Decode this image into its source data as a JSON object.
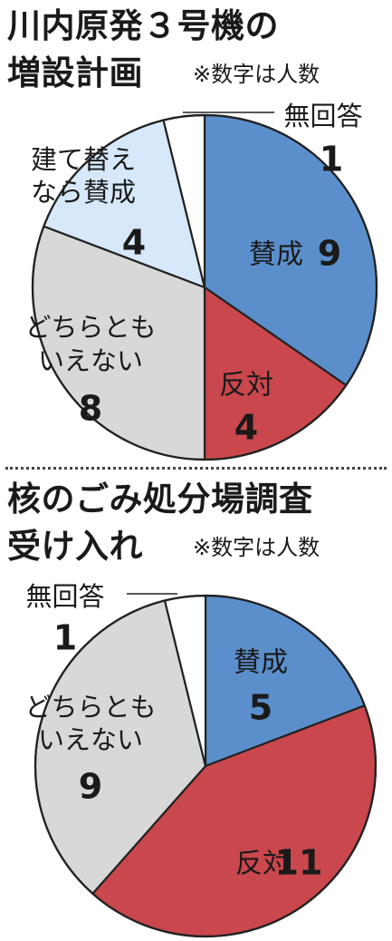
{
  "chart_data": [
    {
      "type": "pie",
      "title": "川内原発３号機の増設計画",
      "title_lines": [
        "川内原発３号機の",
        "増設計画"
      ],
      "note": "※数字は人数",
      "categories": [
        "賛成",
        "反対",
        "どちらともいえない",
        "建て替えなら賛成",
        "無回答"
      ],
      "label_lines": [
        [
          "賛成"
        ],
        [
          "反対"
        ],
        [
          "どちらとも",
          "いえない"
        ],
        [
          "建て替え",
          "なら賛成"
        ],
        [
          "無回答"
        ]
      ],
      "values": [
        9,
        4,
        8,
        4,
        1
      ],
      "colors": [
        "#5b8fcb",
        "#c9474d",
        "#d8d8d8",
        "#d6e8f9",
        "#ffffff"
      ],
      "start_at": "12 o'clock, clockwise"
    },
    {
      "type": "pie",
      "title": "核のごみ処分場調査受け入れ",
      "title_lines": [
        "核のごみ処分場調査",
        "受け入れ"
      ],
      "note": "※数字は人数",
      "categories": [
        "賛成",
        "反対",
        "どちらともいえない",
        "無回答"
      ],
      "label_lines": [
        [
          "賛成"
        ],
        [
          "反対"
        ],
        [
          "どちらとも",
          "いえない"
        ],
        [
          "無回答"
        ]
      ],
      "values": [
        5,
        11,
        9,
        1
      ],
      "colors": [
        "#5b8fcb",
        "#c9474d",
        "#d8d8d8",
        "#ffffff"
      ],
      "start_at": "12 o'clock, clockwise"
    }
  ]
}
